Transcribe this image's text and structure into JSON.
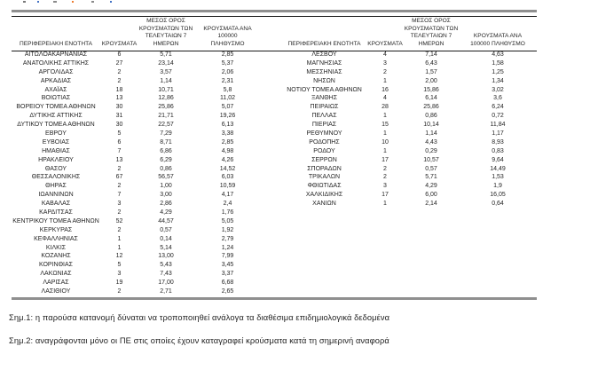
{
  "colors": {
    "rule_gray": "#8f8f8f",
    "rule_dark": "#1a1a1a",
    "text": "#262626"
  },
  "tables": [
    {
      "id": "left",
      "headers": [
        "ΠΕΡΙΦΕΡΕΙΑΚΗ ΕΝΟΤΗΤΑ",
        "ΚΡΟΥΣΜΑΤΑ",
        "ΜΕΣΟΣ ΟΡΟΣ\nΚΡΟΥΣΜΑΤΩΝ ΤΩΝ\nΤΕΛΕΥΤΑΙΩΝ 7\nΗΜΕΡΩΝ",
        "ΚΡΟΥΣΜΑΤΑ ΑΝΑ 100000\nΠΛΗΘΥΣΜΟ"
      ],
      "rows": [
        [
          "ΑΙΤΩΛΟΑΚΑΡΝΑΝΙΑΣ",
          "6",
          "5,71",
          "2,85"
        ],
        [
          "ΑΝΑΤΟΛΙΚΗΣ ΑΤΤΙΚΗΣ",
          "27",
          "23,14",
          "5,37"
        ],
        [
          "ΑΡΓΟΛΙΔΑΣ",
          "2",
          "3,57",
          "2,06"
        ],
        [
          "ΑΡΚΑΔΙΑΣ",
          "2",
          "1,14",
          "2,31"
        ],
        [
          "ΑΧΑΪΑΣ",
          "18",
          "10,71",
          "5,8"
        ],
        [
          "ΒΟΙΩΤΙΑΣ",
          "13",
          "12,86",
          "11,02"
        ],
        [
          "ΒΟΡΕΙΟΥ ΤΟΜΕΑ ΑΘΗΝΩΝ",
          "30",
          "25,86",
          "5,07"
        ],
        [
          "ΔΥΤΙΚΗΣ ΑΤΤΙΚΗΣ",
          "31",
          "21,71",
          "19,26"
        ],
        [
          "ΔΥΤΙΚΟΥ ΤΟΜΕΑ ΑΘΗΝΩΝ",
          "30",
          "22,57",
          "6,13"
        ],
        [
          "ΕΒΡΟΥ",
          "5",
          "7,29",
          "3,38"
        ],
        [
          "ΕΥΒΟΙΑΣ",
          "6",
          "8,71",
          "2,85"
        ],
        [
          "ΗΜΑΘΙΑΣ",
          "7",
          "6,86",
          "4,98"
        ],
        [
          "ΗΡΑΚΛΕΙΟΥ",
          "13",
          "6,29",
          "4,26"
        ],
        [
          "ΘΑΣΟΥ",
          "2",
          "0,86",
          "14,52"
        ],
        [
          "ΘΕΣΣΑΛΟΝΙΚΗΣ",
          "67",
          "56,57",
          "6,03"
        ],
        [
          "ΘΗΡΑΣ",
          "2",
          "1,00",
          "10,59"
        ],
        [
          "ΙΩΑΝΝΙΝΩΝ",
          "7",
          "3,00",
          "4,17"
        ],
        [
          "ΚΑΒΑΛΑΣ",
          "3",
          "2,86",
          "2,4"
        ],
        [
          "ΚΑΡΔΙΤΣΑΣ",
          "2",
          "4,29",
          "1,76"
        ],
        [
          "ΚΕΝΤΡΙΚΟΥ ΤΟΜΕΑ ΑΘΗΝΩΝ",
          "52",
          "44,57",
          "5,05"
        ],
        [
          "ΚΕΡΚΥΡΑΣ",
          "2",
          "0,57",
          "1,92"
        ],
        [
          "ΚΕΦΑΛΛΗΝΙΑΣ",
          "1",
          "0,14",
          "2,79"
        ],
        [
          "ΚΙΛΚΙΣ",
          "1",
          "5,14",
          "1,24"
        ],
        [
          "ΚΟΖΑΝΗΣ",
          "12",
          "13,00",
          "7,99"
        ],
        [
          "ΚΟΡΙΝΘΙΑΣ",
          "5",
          "5,43",
          "3,45"
        ],
        [
          "ΛΑΚΩΝΙΑΣ",
          "3",
          "7,43",
          "3,37"
        ],
        [
          "ΛΑΡΙΣΑΣ",
          "19",
          "17,00",
          "6,68"
        ],
        [
          "ΛΑΣΙΘΙΟΥ",
          "2",
          "2,71",
          "2,65"
        ]
      ]
    },
    {
      "id": "right",
      "headers": [
        "ΠΕΡΙΦΕΡΕΙΑΚΗ ΕΝΟΤΗΤΑ",
        "ΚΡΟΥΣΜΑΤΑ",
        "ΜΕΣΟΣ ΟΡΟΣ\nΚΡΟΥΣΜΑΤΩΝ ΤΩΝ\nΤΕΛΕΥΤΑΙΩΝ 7\nΗΜΕΡΩΝ",
        "ΚΡΟΥΣΜΑΤΑ ΑΝΑ\n100000 ΠΛΗΘΥΣΜΟ"
      ],
      "rows": [
        [
          "ΛΕΣΒΟΥ",
          "4",
          "7,14",
          "4,63"
        ],
        [
          "ΜΑΓΝΗΣΙΑΣ",
          "3",
          "6,43",
          "1,58"
        ],
        [
          "ΜΕΣΣΗΝΙΑΣ",
          "2",
          "1,57",
          "1,25"
        ],
        [
          "ΝΗΣΩΝ",
          "1",
          "2,00",
          "1,34"
        ],
        [
          "ΝΟΤΙΟΥ ΤΟΜΕΑ ΑΘΗΝΩΝ",
          "16",
          "15,86",
          "3,02"
        ],
        [
          "ΞΑΝΘΗΣ",
          "4",
          "6,14",
          "3,6"
        ],
        [
          "ΠΕΙΡΑΙΩΣ",
          "28",
          "25,86",
          "6,24"
        ],
        [
          "ΠΕΛΛΑΣ",
          "1",
          "0,86",
          "0,72"
        ],
        [
          "ΠΙΕΡΙΑΣ",
          "15",
          "10,14",
          "11,84"
        ],
        [
          "ΡΕΘΥΜΝΟΥ",
          "1",
          "1,14",
          "1,17"
        ],
        [
          "ΡΟΔΟΠΗΣ",
          "10",
          "4,43",
          "8,93"
        ],
        [
          "ΡΟΔΟΥ",
          "1",
          "0,29",
          "0,83"
        ],
        [
          "ΣΕΡΡΩΝ",
          "17",
          "10,57",
          "9,64"
        ],
        [
          "ΣΠΟΡΑΔΩΝ",
          "2",
          "0,57",
          "14,49"
        ],
        [
          "ΤΡΙΚΑΛΩΝ",
          "2",
          "5,71",
          "1,53"
        ],
        [
          "ΦΘΙΩΤΙΔΑΣ",
          "3",
          "4,29",
          "1,9"
        ],
        [
          "ΧΑΛΚΙΔΙΚΗΣ",
          "17",
          "6,00",
          "16,05"
        ],
        [
          "ΧΑΝΙΩΝ",
          "1",
          "2,14",
          "0,64"
        ]
      ]
    }
  ],
  "footnotes": [
    "Σημ.1: η παρούσα κατανομή δύναται να τροποποιηθεί ανάλογα τα διαθέσιμα επιδημιολογικά δεδομένα",
    "Σημ.2: αναγράφονται μόνο οι ΠΕ στις οποίες έχουν καταγραφεί κρούσματα κατά τη σημερινή αναφορά"
  ]
}
